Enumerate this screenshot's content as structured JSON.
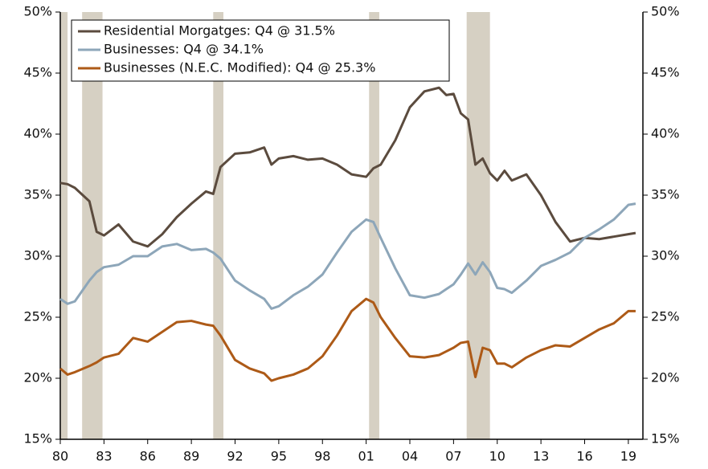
{
  "chart_data": {
    "type": "line",
    "x": [
      1980,
      1980.5,
      1981,
      1982,
      1982.5,
      1983,
      1984,
      1985,
      1986,
      1987,
      1988,
      1989,
      1990,
      1990.5,
      1991,
      1992,
      1993,
      1994,
      1994.5,
      1995,
      1996,
      1997,
      1998,
      1999,
      2000,
      2001,
      2001.5,
      2002,
      2003,
      2004,
      2005,
      2006,
      2006.5,
      2007,
      2007.5,
      2008,
      2008.5,
      2009,
      2009.5,
      2010,
      2010.5,
      2011,
      2012,
      2013,
      2014,
      2015,
      2016,
      2017,
      2018,
      2019,
      2019.5
    ],
    "series": [
      {
        "name": "Residential Morgatges: Q4 @ 31.5%",
        "color": "#5b4b3e",
        "values": [
          36.0,
          35.9,
          35.6,
          34.5,
          32.0,
          31.7,
          32.6,
          31.2,
          30.8,
          31.8,
          33.2,
          34.3,
          35.3,
          35.1,
          37.3,
          38.4,
          38.5,
          38.9,
          37.5,
          38.0,
          38.2,
          37.9,
          38.0,
          37.5,
          36.7,
          36.5,
          37.2,
          37.5,
          39.5,
          42.2,
          43.5,
          43.8,
          43.2,
          43.3,
          41.7,
          41.2,
          37.5,
          38.0,
          36.8,
          36.2,
          37.0,
          36.2,
          36.7,
          35.0,
          32.8,
          31.2,
          31.5,
          31.4,
          31.6,
          31.8,
          31.9
        ]
      },
      {
        "name": "Businesses: Q4 @ 34.1%",
        "color": "#8da6b9",
        "values": [
          26.5,
          26.1,
          26.3,
          28.0,
          28.7,
          29.1,
          29.3,
          30.0,
          30.0,
          30.8,
          31.0,
          30.5,
          30.6,
          30.3,
          29.8,
          28.0,
          27.2,
          26.5,
          25.7,
          25.9,
          26.8,
          27.5,
          28.5,
          30.3,
          32.0,
          33.0,
          32.8,
          31.5,
          29.0,
          26.8,
          26.6,
          26.9,
          27.3,
          27.7,
          28.5,
          29.4,
          28.5,
          29.5,
          28.7,
          27.4,
          27.3,
          27.0,
          28.0,
          29.2,
          29.7,
          30.3,
          31.5,
          32.2,
          33.0,
          34.2,
          34.3
        ]
      },
      {
        "name": "Businesses (N.E.C. Modified): Q4 @ 25.3%",
        "color": "#ad5a17",
        "values": [
          20.8,
          20.3,
          20.5,
          21.0,
          21.3,
          21.7,
          22.0,
          23.3,
          23.0,
          23.8,
          24.6,
          24.7,
          24.4,
          24.3,
          23.5,
          21.5,
          20.8,
          20.4,
          19.8,
          20.0,
          20.3,
          20.8,
          21.8,
          23.5,
          25.5,
          26.5,
          26.2,
          25.0,
          23.3,
          21.8,
          21.7,
          21.9,
          22.2,
          22.5,
          22.9,
          23.0,
          20.1,
          22.5,
          22.3,
          21.2,
          21.2,
          20.9,
          21.7,
          22.3,
          22.7,
          22.6,
          23.3,
          24.0,
          24.5,
          25.5,
          25.5
        ]
      }
    ],
    "recessions": [
      [
        1980,
        1980.5
      ],
      [
        1981.5,
        1982.9
      ],
      [
        1990.5,
        1991.2
      ],
      [
        2001.2,
        2001.9
      ],
      [
        2007.9,
        2009.5
      ]
    ],
    "xlim": [
      1980,
      2020
    ],
    "xticks": [
      {
        "value": 1980,
        "label": "80"
      },
      {
        "value": 1983,
        "label": "83"
      },
      {
        "value": 1986,
        "label": "86"
      },
      {
        "value": 1989,
        "label": "89"
      },
      {
        "value": 1992,
        "label": "92"
      },
      {
        "value": 1995,
        "label": "95"
      },
      {
        "value": 1998,
        "label": "98"
      },
      {
        "value": 2001,
        "label": "01"
      },
      {
        "value": 2004,
        "label": "04"
      },
      {
        "value": 2007,
        "label": "07"
      },
      {
        "value": 2010,
        "label": "10"
      },
      {
        "value": 2013,
        "label": "13"
      },
      {
        "value": 2016,
        "label": "16"
      },
      {
        "value": 2019,
        "label": "19"
      }
    ],
    "ylim": [
      15,
      50
    ],
    "yticks": [
      {
        "value": 15,
        "label": "15%"
      },
      {
        "value": 20,
        "label": "20%"
      },
      {
        "value": 25,
        "label": "25%"
      },
      {
        "value": 30,
        "label": "30%"
      },
      {
        "value": 35,
        "label": "35%"
      },
      {
        "value": 40,
        "label": "40%"
      },
      {
        "value": 45,
        "label": "45%"
      },
      {
        "value": 50,
        "label": "50%"
      }
    ],
    "y2lim": [
      15,
      50
    ],
    "y2ticks": [
      {
        "value": 15,
        "label": "15%"
      },
      {
        "value": 20,
        "label": "20%"
      },
      {
        "value": 25,
        "label": "25%"
      },
      {
        "value": 30,
        "label": "30%"
      },
      {
        "value": 35,
        "label": "35%"
      },
      {
        "value": 40,
        "label": "40%"
      },
      {
        "value": 45,
        "label": "45%"
      },
      {
        "value": 50,
        "label": "50%"
      }
    ],
    "recession_color": "#d6d0c3",
    "legend": "upper left"
  }
}
